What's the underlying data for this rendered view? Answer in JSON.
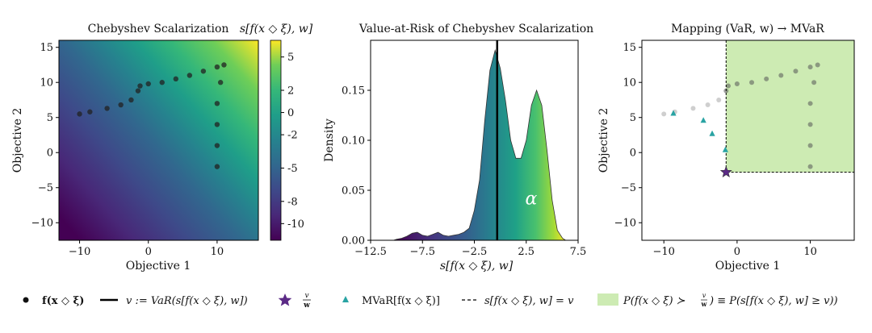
{
  "chart_data": [
    {
      "type": "heatmap",
      "title": "Chebyshev Scalarization",
      "colorbar_label": "s[f(x ◇ ξ), w]",
      "xlabel": "Objective 1",
      "ylabel": "Objective 2",
      "xlim": [
        -13,
        16
      ],
      "ylim": [
        -12.5,
        16
      ],
      "xticks": [
        -10,
        0,
        10
      ],
      "xtick_labels": [
        "−10",
        "0",
        "10"
      ],
      "yticks": [
        -10,
        -5,
        0,
        5,
        10,
        15
      ],
      "ytick_labels": [
        "−10",
        "−5",
        "0",
        "5",
        "10",
        "15"
      ],
      "colorbar_range": [
        -11.5,
        6.5
      ],
      "colorbar_ticks": [
        5,
        2,
        0,
        -2,
        -5,
        -8,
        -10
      ],
      "colorbar_tick_labels": [
        "5",
        "2",
        "0",
        "-2",
        "-5",
        "-8",
        "-10"
      ],
      "samples": [
        [
          -10,
          5.5
        ],
        [
          -8.5,
          5.8
        ],
        [
          -6,
          6.3
        ],
        [
          -4,
          6.8
        ],
        [
          -2.5,
          7.5
        ],
        [
          -1.5,
          8.8
        ],
        [
          -1.2,
          9.5
        ],
        [
          0,
          9.8
        ],
        [
          2,
          10
        ],
        [
          4,
          10.5
        ],
        [
          6,
          11
        ],
        [
          8,
          11.6
        ],
        [
          10,
          12.2
        ],
        [
          11,
          12.5
        ],
        [
          10.5,
          10
        ],
        [
          10,
          7
        ],
        [
          10,
          4
        ],
        [
          10,
          1
        ],
        [
          10,
          -2
        ]
      ]
    },
    {
      "type": "area",
      "title": "Value-at-Risk of Chebyshev Scalarization",
      "xlabel": "s[f(x ◇ ξ), w]",
      "ylabel": "Density",
      "xlim": [
        -12.5,
        7.5
      ],
      "ylim": [
        0,
        0.2
      ],
      "xticks": [
        -12.5,
        -7.5,
        -2.5,
        2.5,
        7.5
      ],
      "xtick_labels": [
        "−12.5",
        "−7.5",
        "−2.5",
        "2.5",
        "7.5"
      ],
      "yticks": [
        0,
        0.05,
        0.1,
        0.15
      ],
      "ytick_labels": [
        "0.00",
        "0.05",
        "0.10",
        "0.15"
      ],
      "var_line_x": -0.3,
      "alpha_label": "α",
      "x": [
        -10.3,
        -10,
        -9.5,
        -9,
        -8.5,
        -8,
        -7.5,
        -7,
        -6.5,
        -6,
        -5.5,
        -5,
        -4.5,
        -4,
        -3.5,
        -3,
        -2.5,
        -2,
        -1.5,
        -1,
        -0.5,
        0,
        0.5,
        1,
        1.5,
        2,
        2.5,
        3,
        3.5,
        4,
        4.5,
        5,
        5.5,
        6,
        6.3
      ],
      "y": [
        0,
        0.001,
        0.002,
        0.004,
        0.007,
        0.008,
        0.005,
        0.004,
        0.006,
        0.008,
        0.005,
        0.004,
        0.005,
        0.006,
        0.008,
        0.012,
        0.03,
        0.06,
        0.12,
        0.17,
        0.19,
        0.172,
        0.14,
        0.1,
        0.082,
        0.082,
        0.1,
        0.135,
        0.15,
        0.135,
        0.09,
        0.04,
        0.01,
        0.002,
        0
      ]
    },
    {
      "type": "scatter",
      "title": "Mapping (VaR, w) → MVaR",
      "xlabel": "Objective 1",
      "ylabel": "Objective 2",
      "xlim": [
        -13,
        16
      ],
      "ylim": [
        -12.5,
        16
      ],
      "xticks": [
        -10,
        0,
        10
      ],
      "xtick_labels": [
        "−10",
        "0",
        "10"
      ],
      "yticks": [
        -10,
        -5,
        0,
        5,
        10,
        15
      ],
      "ytick_labels": [
        "−10",
        "−5",
        "0",
        "5",
        "10",
        "15"
      ],
      "v_point": [
        -1.5,
        -2.8
      ],
      "mvar_points": [
        [
          -8.7,
          5.6
        ],
        [
          -4.6,
          4.6
        ],
        [
          -3.4,
          2.7
        ],
        [
          -1.6,
          0.4
        ]
      ],
      "region_color": "#cdebb3"
    }
  ],
  "legend": {
    "samples": "f(x ◇ ξ)",
    "var": "v := VaR(s[f(x ◇ ξ), w])",
    "v_w_num": "v",
    "v_w_den": "w",
    "mvar": "MVaR[f(x ◇ ξ)]",
    "level": "s[f(x ◇ ξ), w] = v",
    "region_a": "P(f(x ◇ ξ) ≻ ",
    "region_b": ") ≡ P(s[f(x ◇ ξ), w] ≥ v))"
  },
  "colors": {
    "samples": "#222222",
    "star": "#5b2a86",
    "mvar": "#29a3a3",
    "region": "#cdebb3",
    "var_line": "#000000"
  }
}
